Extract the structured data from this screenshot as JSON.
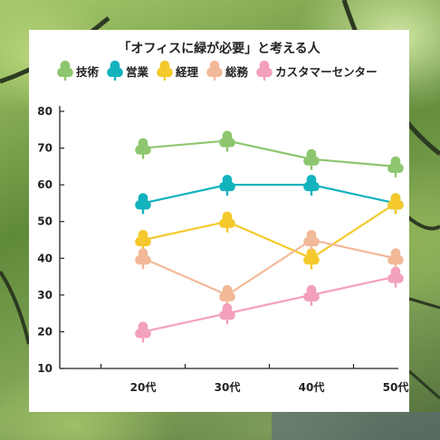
{
  "chart_data": {
    "type": "line",
    "title": "「オフィスに緑が必要」と考える人",
    "categories": [
      "20代",
      "30代",
      "40代",
      "50代"
    ],
    "ylim": [
      10,
      80
    ],
    "yticks": [
      10,
      20,
      30,
      40,
      50,
      60,
      70,
      80
    ],
    "legend_position": "top",
    "marker": "tree-icon",
    "series": [
      {
        "name": "技術",
        "color": "#8dc66e",
        "values": [
          70,
          72,
          67,
          65
        ]
      },
      {
        "name": "営業",
        "color": "#13b3be",
        "values": [
          55,
          60,
          60,
          55
        ]
      },
      {
        "name": "経理",
        "color": "#f5c92b",
        "values": [
          45,
          50,
          40,
          55
        ]
      },
      {
        "name": "総務",
        "color": "#f2b998",
        "values": [
          40,
          30,
          45,
          40
        ]
      },
      {
        "name": "カスタマーセンター",
        "color": "#f3a0bb",
        "values": [
          20,
          25,
          30,
          35
        ]
      }
    ]
  }
}
